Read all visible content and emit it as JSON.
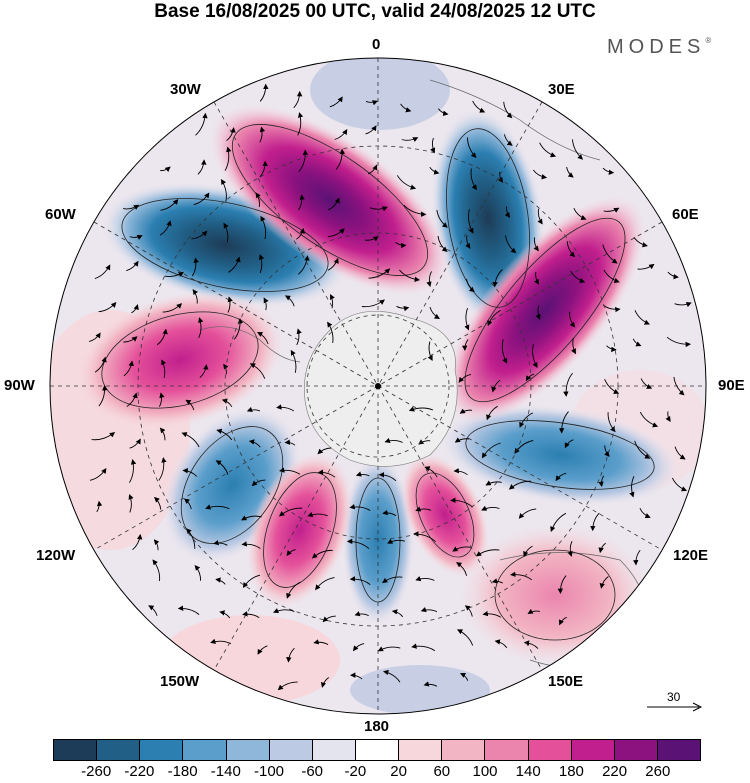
{
  "title": "Base 16/08/2025 00 UTC, valid 24/08/2025 12 UTC",
  "brand": "MODES",
  "brand_mark": "®",
  "longitude_labels": {
    "n0": "0",
    "e30": "30E",
    "e60": "60E",
    "e90": "90E",
    "e120": "120E",
    "e150": "150E",
    "s180": "180",
    "w150": "150W",
    "w120": "120W",
    "w90": "90W",
    "w60": "60W",
    "w30": "30W"
  },
  "reference_vector": {
    "label": "30"
  },
  "colorbar": {
    "colors": [
      "#1d3c57",
      "#215f86",
      "#2b7fb1",
      "#5b9ecb",
      "#8fb7da",
      "#bccae3",
      "#e4e4ef",
      "#ffffff",
      "#f8d7dc",
      "#f2b5c3",
      "#eb85ae",
      "#e4509a",
      "#c11f8d",
      "#8b127f",
      "#5a1275"
    ],
    "ticks": [
      "-260",
      "-220",
      "-180",
      "-140",
      "-100",
      "-60",
      "-20",
      "20",
      "60",
      "100",
      "140",
      "180",
      "220",
      "260"
    ]
  },
  "map_features": {
    "negative_anomalies": [
      "atlantic-low-60W",
      "south-atlantic-low-20E",
      "indian-ocean-low-100E",
      "pacific-low-115W",
      "pacific-low-175W"
    ],
    "positive_anomalies": [
      "ridge-15W",
      "ridge-70E",
      "ridge-80W",
      "ridge-145W",
      "ridge-150E"
    ]
  }
}
